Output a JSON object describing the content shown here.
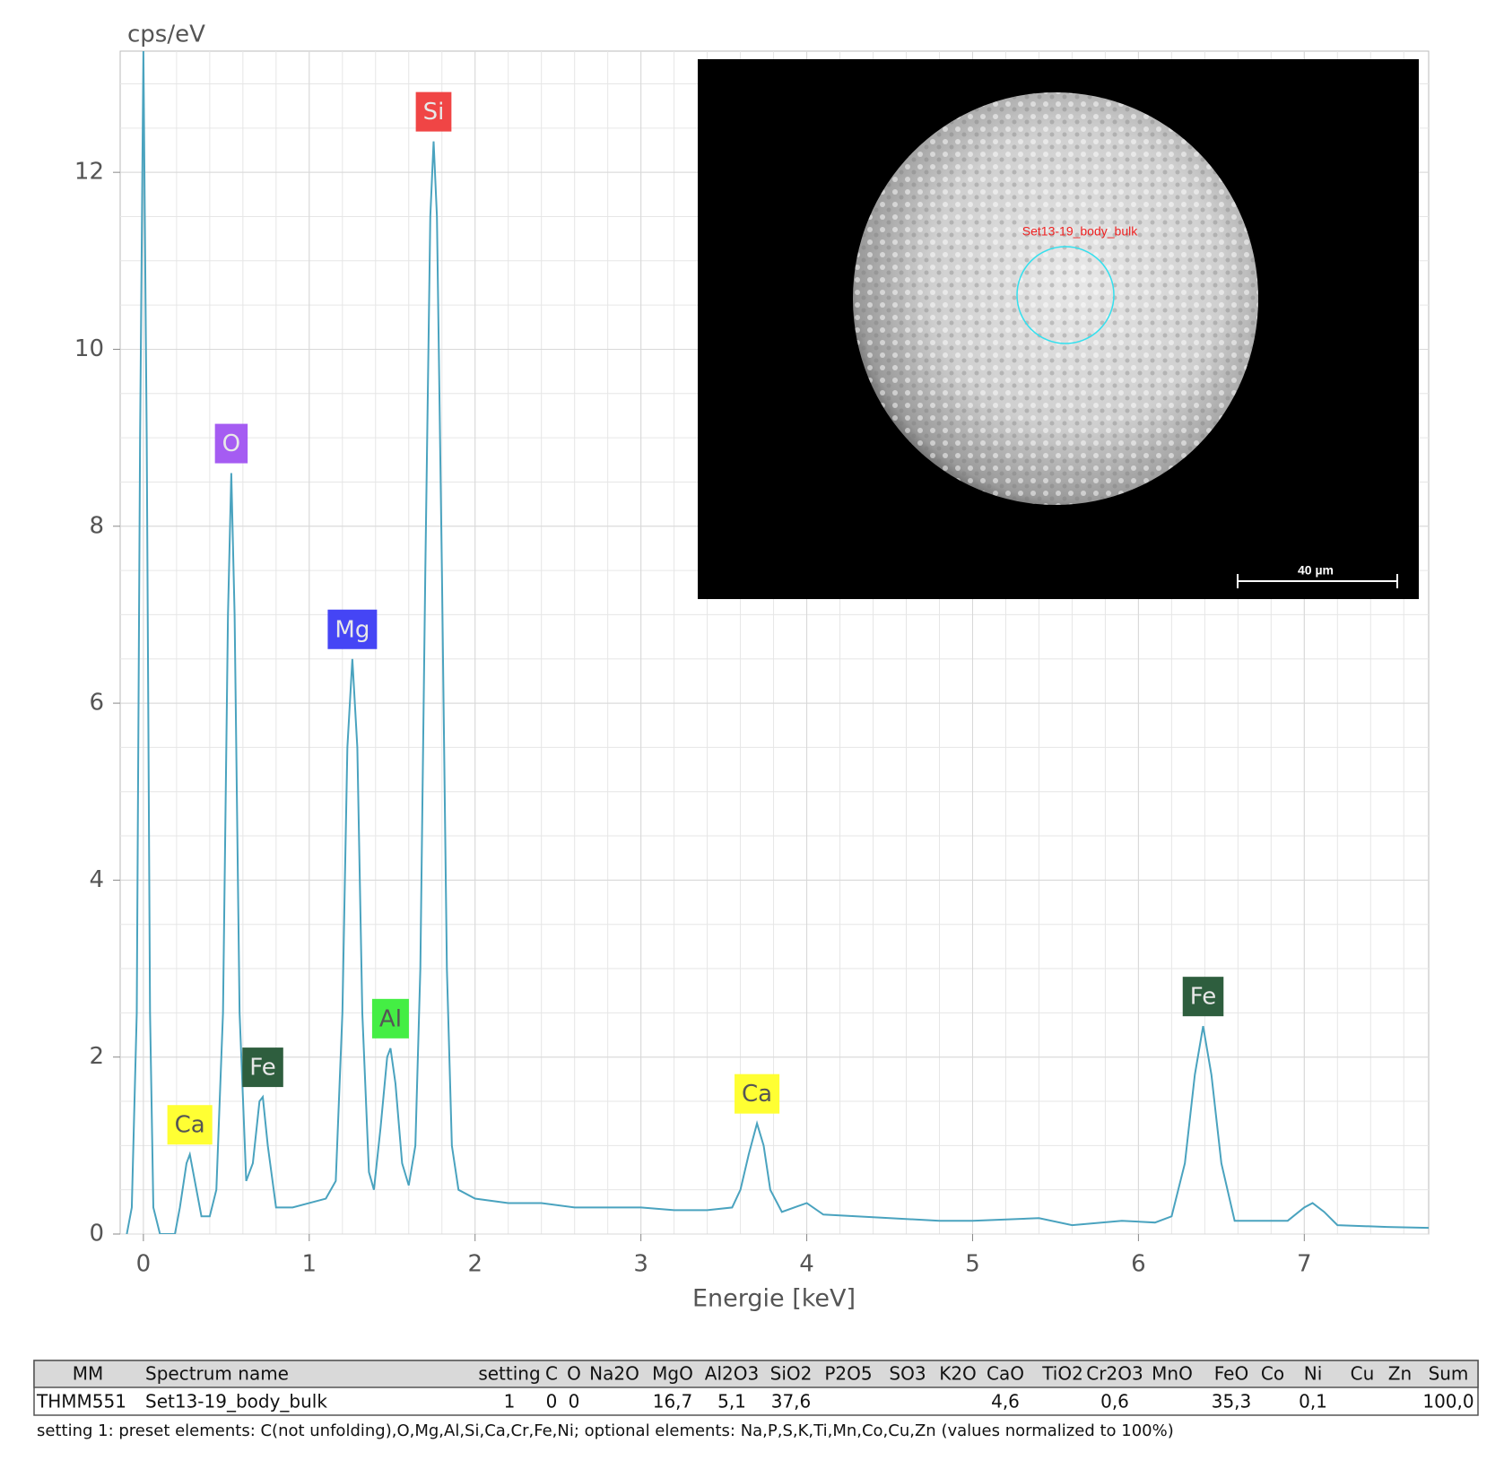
{
  "chart_data": {
    "type": "line",
    "y_label": "cps/eV",
    "x_label": "Energie [keV]",
    "color": "#4aa3bf",
    "grid": true,
    "xlim": [
      -0.14,
      7.75
    ],
    "ylim": [
      0,
      13.37
    ],
    "xticks": [
      0,
      1,
      2,
      3,
      4,
      5,
      6,
      7
    ],
    "yticks": [
      0,
      2,
      4,
      6,
      8,
      10,
      12
    ],
    "x": [
      -0.1,
      -0.07,
      -0.04,
      -0.02,
      0,
      0.02,
      0.04,
      0.06,
      0.1,
      0.19,
      0.22,
      0.26,
      0.28,
      0.31,
      0.35,
      0.4,
      0.44,
      0.48,
      0.51,
      0.53,
      0.55,
      0.58,
      0.62,
      0.66,
      0.7,
      0.72,
      0.75,
      0.8,
      0.9,
      1.0,
      1.1,
      1.16,
      1.2,
      1.23,
      1.26,
      1.29,
      1.32,
      1.36,
      1.39,
      1.43,
      1.47,
      1.49,
      1.52,
      1.56,
      1.6,
      1.64,
      1.67,
      1.7,
      1.73,
      1.75,
      1.77,
      1.8,
      1.83,
      1.86,
      1.9,
      2.0,
      2.2,
      2.4,
      2.6,
      2.8,
      3.0,
      3.2,
      3.4,
      3.55,
      3.6,
      3.65,
      3.7,
      3.74,
      3.78,
      3.85,
      4.0,
      4.1,
      4.3,
      4.5,
      4.8,
      5.0,
      5.4,
      5.6,
      5.9,
      6.1,
      6.2,
      6.28,
      6.34,
      6.39,
      6.44,
      6.5,
      6.58,
      6.9,
      7.0,
      7.05,
      7.12,
      7.2,
      7.5,
      7.75
    ],
    "values": [
      0,
      0.3,
      2.5,
      9,
      13.37,
      9,
      2.5,
      0.3,
      0,
      0,
      0.3,
      0.8,
      0.9,
      0.6,
      0.2,
      0.2,
      0.5,
      2.5,
      7,
      8.6,
      7,
      2.5,
      0.6,
      0.8,
      1.5,
      1.55,
      1.0,
      0.3,
      0.3,
      0.35,
      0.4,
      0.6,
      2.5,
      5.5,
      6.5,
      5.5,
      2.5,
      0.7,
      0.5,
      1.2,
      2.0,
      2.1,
      1.7,
      0.8,
      0.55,
      1.0,
      3,
      7.5,
      11.5,
      12.35,
      11.5,
      7.5,
      3,
      1.0,
      0.5,
      0.4,
      0.35,
      0.35,
      0.3,
      0.3,
      0.3,
      0.27,
      0.27,
      0.3,
      0.5,
      0.9,
      1.25,
      1.0,
      0.5,
      0.25,
      0.35,
      0.22,
      0.2,
      0.18,
      0.15,
      0.15,
      0.18,
      0.1,
      0.15,
      0.13,
      0.2,
      0.8,
      1.8,
      2.35,
      1.8,
      0.8,
      0.15,
      0.15,
      0.3,
      0.35,
      0.25,
      0.1,
      0.08,
      0.07
    ],
    "annotations": [
      {
        "text": "Ca",
        "x": 0.28,
        "y": 0.9,
        "color": "#ffff33"
      },
      {
        "text": "O",
        "x": 0.53,
        "y": 8.6,
        "color": "#a55cf2"
      },
      {
        "text": "Fe",
        "x": 0.72,
        "y": 1.55,
        "color": "#2e5e3e"
      },
      {
        "text": "Mg",
        "x": 1.26,
        "y": 6.5,
        "color": "#4545f5"
      },
      {
        "text": "Al",
        "x": 1.49,
        "y": 2.1,
        "color": "#44ee44"
      },
      {
        "text": "Si",
        "x": 1.75,
        "y": 12.35,
        "color": "#f04545"
      },
      {
        "text": "Ca",
        "x": 3.7,
        "y": 1.25,
        "color": "#ffff33"
      },
      {
        "text": "Fe",
        "x": 6.39,
        "y": 2.35,
        "color": "#2e5e3e"
      }
    ],
    "inset": {
      "spot_label": "Set13-19_body_bulk",
      "scale_bar": "40 µm"
    }
  },
  "table": {
    "header": [
      "MM",
      "Spectrum name",
      "setting",
      "C",
      "O",
      "Na2O",
      "MgO",
      "Al2O3",
      "SiO2",
      "P2O5",
      "SO3",
      "K2O",
      "CaO",
      "TiO2",
      "Cr2O3",
      "MnO",
      "FeO",
      "Co",
      "Ni",
      "Cu",
      "Zn",
      "Sum"
    ],
    "rows": [
      [
        "THMM551",
        "Set13-19_body_bulk",
        "1",
        "0",
        "0",
        null,
        "16,7",
        "5,1",
        "37,6",
        null,
        null,
        null,
        "4,6",
        null,
        "0,6",
        null,
        "35,3",
        null,
        "0,1",
        null,
        null,
        "100,0"
      ]
    ],
    "note": "setting 1: preset elements: C(not unfolding),O,Mg,Al,Si,Ca,Cr,Fe,Ni; optional elements: Na,P,S,K,Ti,Mn,Co,Cu,Zn (values normalized to 100%)"
  }
}
